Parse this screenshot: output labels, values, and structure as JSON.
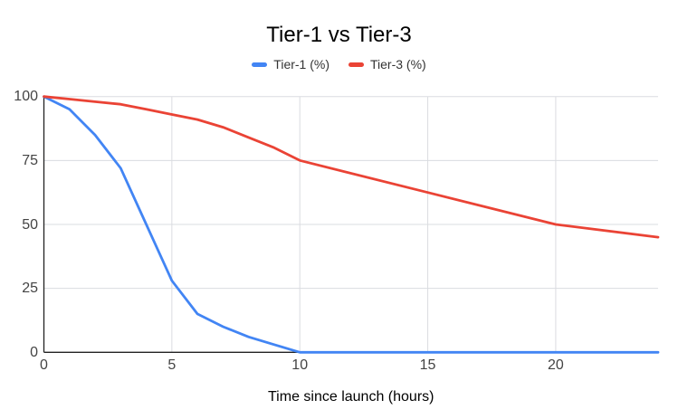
{
  "title": "Tier-1 vs Tier-3",
  "chart_data": {
    "type": "line",
    "title": "Tier-1 vs Tier-3",
    "xlabel": "Time since launch (hours)",
    "ylabel": "",
    "x": [
      0,
      1,
      2,
      3,
      4,
      5,
      6,
      7,
      8,
      9,
      10,
      15,
      20,
      24
    ],
    "series": [
      {
        "name": "Tier-1 (%)",
        "color": "#4285F4",
        "values": [
          100,
          95,
          85,
          72,
          50,
          28,
          15,
          10,
          6,
          3,
          0,
          0,
          0,
          0
        ]
      },
      {
        "name": "Tier-3 (%)",
        "color": "#EA4335",
        "values": [
          100,
          99,
          98,
          97,
          95,
          93,
          91,
          88,
          84,
          80,
          75,
          62.5,
          50,
          45
        ]
      }
    ],
    "xlim": [
      0,
      24
    ],
    "ylim": [
      0,
      100
    ],
    "x_ticks": [
      0,
      5,
      10,
      15,
      20
    ],
    "y_ticks": [
      0,
      25,
      50,
      75,
      100
    ],
    "grid": true,
    "legend_position": "top",
    "colors": {
      "grid": "#DADCE0",
      "axis": "#222222",
      "background": "#FFFFFF",
      "tick_text": "#444444",
      "title_text": "#000000"
    }
  }
}
